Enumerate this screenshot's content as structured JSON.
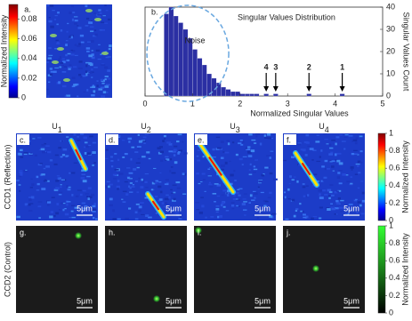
{
  "chart_data": {
    "type": "histogram",
    "title": "Singular Values Distribution",
    "panel_label": "b.",
    "x_label": "Normalized Singular Values",
    "y2_label": "Singular Values Count",
    "noise_label": "Noise",
    "color": "#2b2fa3",
    "axis": "y2",
    "bins": [
      0.4,
      0.5,
      0.6,
      0.7,
      0.8,
      0.9,
      1.0,
      1.1,
      1.2,
      1.3,
      1.4,
      1.5,
      1.6,
      1.7,
      1.8,
      1.9,
      2.0,
      2.1,
      2.2,
      2.3,
      2.4,
      2.5,
      2.6,
      2.7,
      2.8,
      2.9,
      3.0,
      3.1,
      3.2,
      3.3,
      3.4,
      3.5,
      3.6,
      3.7,
      3.8,
      3.9,
      4.0,
      4.1,
      4.2
    ],
    "values": [
      37,
      40,
      36,
      33,
      30,
      26,
      21,
      17,
      14,
      10,
      8,
      6,
      4,
      3,
      2,
      2,
      1,
      1,
      1,
      1,
      0,
      1,
      0,
      1,
      0,
      0,
      0,
      0,
      0,
      0,
      1,
      0,
      0,
      0,
      0,
      0,
      0,
      1
    ],
    "xlim": [
      0,
      5
    ],
    "xticks": [
      0,
      1,
      2,
      3,
      4,
      5
    ],
    "y2lim": [
      0,
      40
    ],
    "y2ticks": [
      0,
      10,
      20,
      30,
      40
    ],
    "peak_labels": [
      {
        "label": "4",
        "x": 2.55
      },
      {
        "label": "3",
        "x": 2.75
      },
      {
        "label": "2",
        "x": 3.45
      },
      {
        "label": "1",
        "x": 4.15
      }
    ]
  },
  "figure": {
    "panel_a": {
      "label": "a.",
      "colorbar": {
        "label": "Normalized Intensity",
        "clim": [
          0,
          0.095
        ],
        "ticks": [
          0,
          0.02,
          0.04,
          0.06,
          0.08
        ]
      }
    },
    "columns": [
      {
        "base": "U",
        "sub": "1"
      },
      {
        "base": "U",
        "sub": "2"
      },
      {
        "base": "U",
        "sub": "3"
      },
      {
        "base": "U",
        "sub": "4"
      }
    ],
    "rows": [
      {
        "label": "CCD1 (Reflection)",
        "panels": [
          "c.",
          "d.",
          "e.",
          "f."
        ],
        "colorbar": {
          "label": "Normalized Intensity",
          "clim": [
            0,
            1
          ],
          "ticks": [
            0,
            0.2,
            0.4,
            0.6,
            0.8,
            1
          ]
        }
      },
      {
        "label": "CCD2 (Control)",
        "panels": [
          "g.",
          "h.",
          "i.",
          "j."
        ],
        "colorbar": {
          "label": "Normalized Intensity",
          "clim": [
            0,
            1
          ],
          "ticks": [
            0,
            0.2,
            0.4,
            0.6,
            0.8,
            1
          ]
        }
      }
    ],
    "scale_bar": "5μm"
  }
}
